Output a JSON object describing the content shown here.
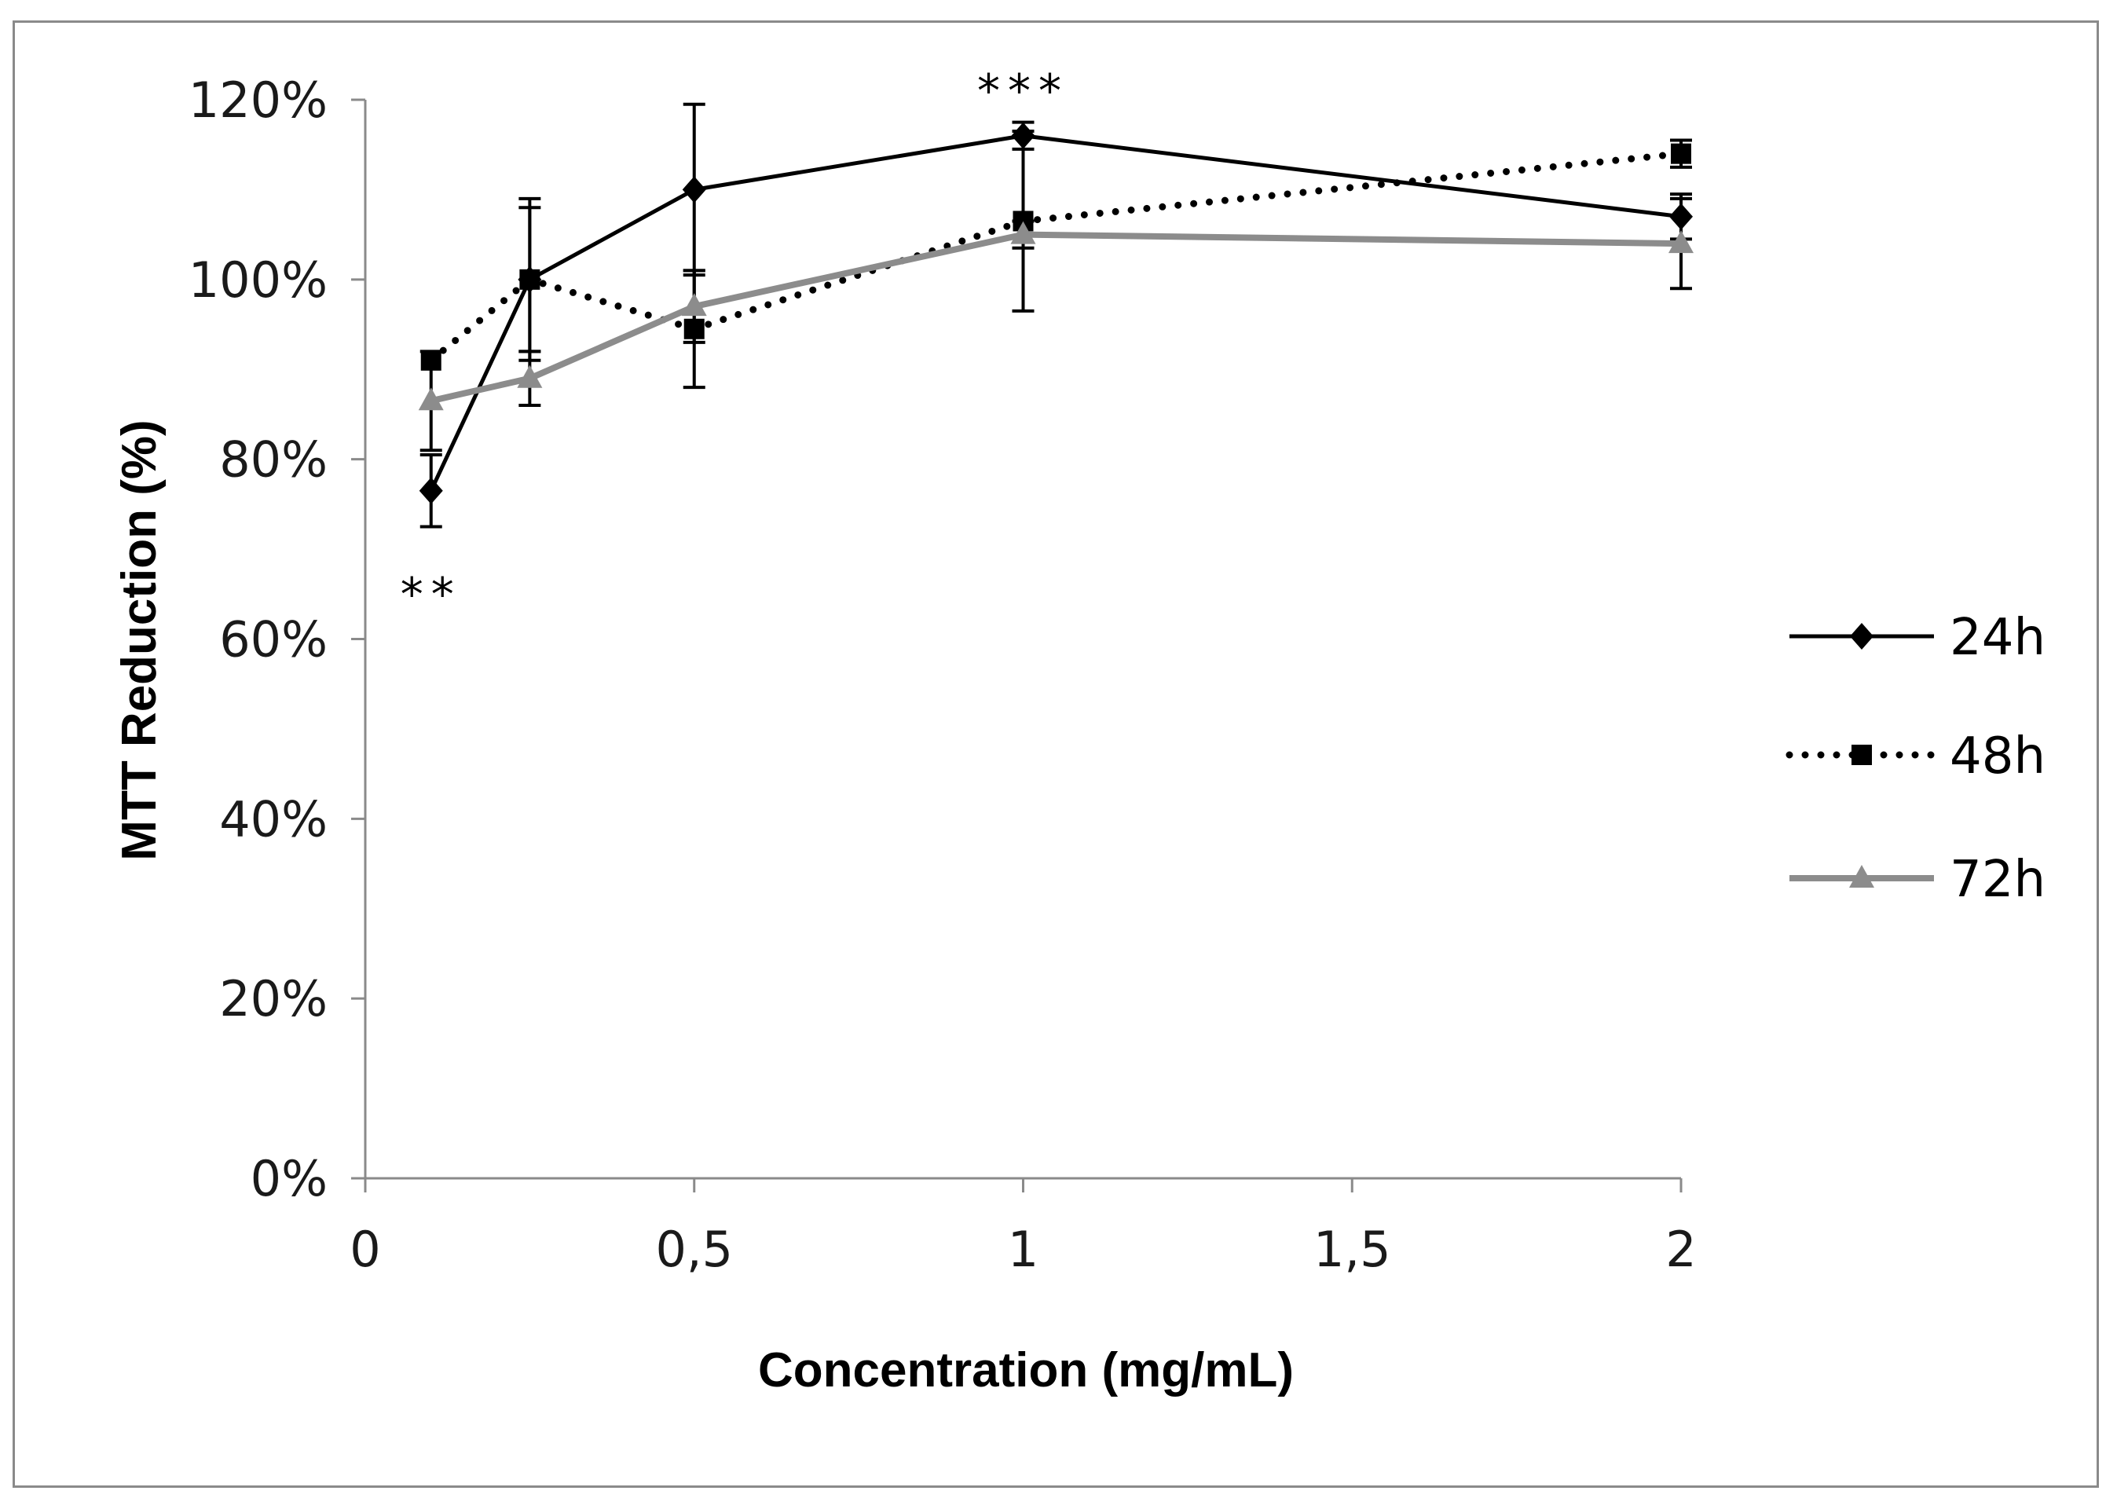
{
  "chart_data": {
    "type": "line",
    "title": "",
    "xlabel": "Concentration (mg/mL)",
    "ylabel": "MTT Reduction (%)",
    "xlim": [
      0,
      2
    ],
    "ylim": [
      0,
      120
    ],
    "x_ticks": [
      0,
      0.5,
      1,
      1.5,
      2
    ],
    "x_tick_labels": [
      "0",
      "0,5",
      "1",
      "1,5",
      "2"
    ],
    "y_ticks": [
      0,
      20,
      40,
      60,
      80,
      100,
      120
    ],
    "y_tick_labels": [
      "0%",
      "20%",
      "40%",
      "60%",
      "80%",
      "100%",
      "120%"
    ],
    "grid": false,
    "legend_position": "right",
    "x": [
      0.1,
      0.25,
      0.5,
      1,
      2
    ],
    "series": [
      {
        "name": "24h",
        "style": "solid",
        "marker": "diamond",
        "color": "#000000",
        "values": [
          76.5,
          100.0,
          110.0,
          116.0,
          107.0
        ],
        "errors": [
          4.0,
          9.0,
          9.5,
          1.5,
          2.5
        ]
      },
      {
        "name": "48h",
        "style": "dotted",
        "marker": "square",
        "color": "#000000",
        "values": [
          91.0,
          100.0,
          94.5,
          106.5,
          114.0
        ],
        "errors": [
          0,
          8.0,
          6.5,
          10.0,
          1.5
        ]
      },
      {
        "name": "72h",
        "style": "solid",
        "marker": "triangle",
        "color": "#8c8c8c",
        "values": [
          86.5,
          89.0,
          97.0,
          105.0,
          104.0
        ],
        "errors": [
          5.5,
          3.0,
          4.0,
          1.5,
          5.0
        ]
      }
    ],
    "annotations": [
      {
        "text": "**",
        "x": 0.1,
        "y": 65
      },
      {
        "text": "***",
        "x": 1,
        "y": 121
      }
    ]
  }
}
